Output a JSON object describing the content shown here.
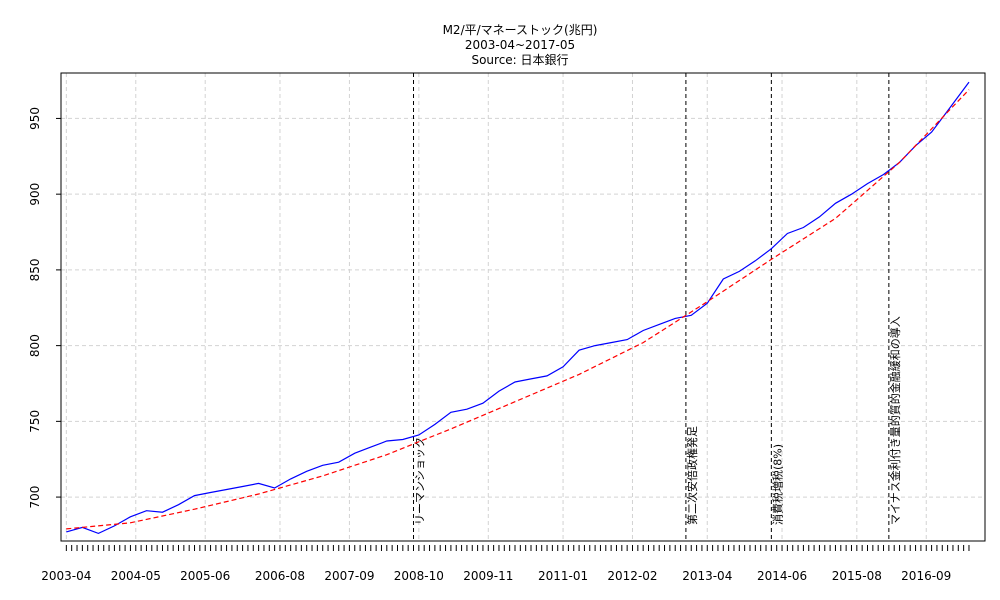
{
  "chart_data": {
    "type": "line",
    "title": "M2/平/マネーストック(兆円)",
    "subtitle": "2003-04~2017-05",
    "source": "Source: 日本銀行",
    "xlabel": "",
    "ylabel": "",
    "xlim": [
      "2003-03",
      "2017-08"
    ],
    "ylim": [
      671,
      980
    ],
    "yticks": [
      700,
      750,
      800,
      850,
      900,
      950
    ],
    "xtick_labels": [
      "2003-04",
      "2004-05",
      "2005-06",
      "2006-08",
      "2007-09",
      "2008-10",
      "2009-11",
      "2011-01",
      "2012-02",
      "2013-04",
      "2014-06",
      "2015-08",
      "2016-09"
    ],
    "grid": true,
    "series": [
      {
        "kind": "actual",
        "color": "#0000ff",
        "style": "solid",
        "x": [
          "2003-04",
          "2003-07",
          "2003-10",
          "2004-01",
          "2004-04",
          "2004-07",
          "2004-10",
          "2005-01",
          "2005-04",
          "2005-07",
          "2005-10",
          "2006-01",
          "2006-04",
          "2006-07",
          "2006-10",
          "2007-01",
          "2007-04",
          "2007-07",
          "2007-10",
          "2008-01",
          "2008-04",
          "2008-07",
          "2008-10",
          "2009-01",
          "2009-04",
          "2009-07",
          "2009-10",
          "2010-01",
          "2010-04",
          "2010-07",
          "2010-10",
          "2011-01",
          "2011-04",
          "2011-07",
          "2011-10",
          "2012-01",
          "2012-04",
          "2012-07",
          "2012-10",
          "2013-01",
          "2013-04",
          "2013-07",
          "2013-10",
          "2014-01",
          "2014-04",
          "2014-07",
          "2014-10",
          "2015-01",
          "2015-04",
          "2015-07",
          "2015-10",
          "2016-01",
          "2016-04",
          "2016-07",
          "2016-10",
          "2017-01",
          "2017-05"
        ],
        "values": [
          677,
          680,
          676,
          681,
          687,
          691,
          690,
          695,
          701,
          703,
          705,
          707,
          709,
          706,
          712,
          717,
          721,
          723,
          729,
          733,
          737,
          738,
          741,
          748,
          756,
          758,
          762,
          770,
          776,
          778,
          780,
          786,
          797,
          800,
          802,
          804,
          810,
          814,
          818,
          820,
          828,
          844,
          849,
          856,
          864,
          874,
          878,
          885,
          894,
          900,
          907,
          913,
          921,
          932,
          941,
          955,
          974
        ]
      },
      {
        "kind": "trend",
        "color": "#ff0000",
        "style": "dashed",
        "x": [
          "2003-04",
          "2004-04",
          "2005-04",
          "2006-04",
          "2007-04",
          "2008-04",
          "2009-04",
          "2010-04",
          "2011-04",
          "2012-04",
          "2013-04",
          "2014-04",
          "2015-04",
          "2016-04",
          "2017-05"
        ],
        "values": [
          679,
          683,
          692,
          702,
          714,
          728,
          745,
          763,
          781,
          802,
          829,
          857,
          884,
          921,
          969
        ]
      }
    ],
    "events": [
      {
        "date": "2008-09",
        "label": "リーマンショック"
      },
      {
        "date": "2012-12",
        "label": "第二次安倍政権発足"
      },
      {
        "date": "2014-04",
        "label": "消費税増税(8%)"
      },
      {
        "date": "2016-02",
        "label": "マイナス金利付き量的質的金融緩和の導入"
      }
    ]
  }
}
